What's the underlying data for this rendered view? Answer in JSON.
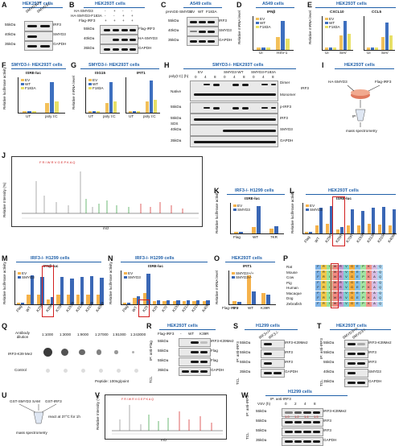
{
  "panels": {
    "A": {
      "label": "A",
      "title": "HEK293T cells",
      "lanes": [
        "SMYD3+/+",
        "SMYD3-/-"
      ],
      "blots": [
        "IRF3",
        "SMYD3",
        "GAPDH"
      ],
      "mw": [
        "55kDa",
        "40kDa",
        "35kDa"
      ]
    },
    "B": {
      "label": "B",
      "title": "HEK293T cells",
      "rows": [
        "HA-SMYD3",
        "HA-SMYD3-F183A",
        "Flag-IRF3"
      ],
      "signs": [
        "-",
        "+",
        "-",
        "-",
        "-",
        "-",
        "+",
        "+",
        "+",
        "+",
        "+",
        "+"
      ],
      "blots": [
        "Flag-IRF3",
        "HA-SMYD3",
        "GAPDH"
      ],
      "mw": [
        "55kDa",
        "40kDa",
        "35kDa"
      ]
    },
    "C": {
      "label": "C",
      "title": "A549 cells",
      "header": "pHAGE-SMYD3",
      "lanes": [
        "EV",
        "WT",
        "F183A"
      ],
      "blots": [
        "IRF3",
        "SMYD3",
        "GAPDH"
      ],
      "mw": [
        "55kDa",
        "40kDa",
        "35kDa"
      ]
    },
    "D": {
      "label": "D",
      "title": "A549 cells",
      "gene": "IFNβ",
      "ylabel": "Relative mRNA level",
      "legend": [
        "EV",
        "WT",
        "F183A"
      ],
      "groups": [
        "UI",
        "HSV-1"
      ]
    },
    "E": {
      "label": "E",
      "title": "HEK293T cells",
      "genes": [
        "CXCL10",
        "CCL5"
      ],
      "ylabel": "Relative mRNA level",
      "legend": [
        "EV",
        "WT",
        "F183A"
      ],
      "groups": [
        "UI",
        "SeV"
      ]
    },
    "F": {
      "label": "F",
      "title": "SMYD3-/- HEK293T cells",
      "sub": "ISRE-luc",
      "ylabel": "Relative luciferase activity",
      "legend": [
        "EV",
        "WT",
        "F183A"
      ],
      "groups": [
        "UT",
        "poly I:C"
      ]
    },
    "G": {
      "label": "G",
      "title": "SMYD3-/- HEK293T cells",
      "genes": [
        "ISG15",
        "IFIT1"
      ],
      "ylabel": "Relative mRNA level",
      "legend": [
        "EV",
        "WT",
        "F183A"
      ],
      "groups": [
        "UT",
        "poly I:C"
      ]
    },
    "H": {
      "label": "H",
      "title": "SMYD3-/- HEK293T cells",
      "header": "poly(I:C) (h)",
      "groups": [
        "EV",
        "SMYD3-WT",
        "SMYD3-F183A"
      ],
      "times": [
        "0",
        "4",
        "8",
        "0",
        "4",
        "8",
        "0",
        "4",
        "8"
      ],
      "native": "Native",
      "sds": "SDS",
      "dimer": "Dimer",
      "monomer": "Monomer",
      "irf3": "IRF3",
      "blots": [
        "p-IRF3",
        "IRF3",
        "SMYD3",
        "GAPDH"
      ],
      "mw": [
        "55kDa",
        "55kDa",
        "40kDa",
        "35kDa"
      ]
    },
    "I": {
      "label": "I",
      "title": "HEK293T cells",
      "items": [
        "HA-SMYD3",
        "Flag-IRF3",
        "IP",
        "mass spectrometry"
      ]
    },
    "J": {
      "label": "J",
      "ylabel": "Relative Intensity (%)",
      "xlabel": "m/z"
    },
    "K": {
      "label": "K",
      "title": "IRF3-/- H1299 cells",
      "sub": "ISRE-luc",
      "ylabel": "Relative luciferase activity",
      "legend": [
        "EV",
        "SMYD3"
      ],
      "groups": [
        "Flag",
        "WT",
        "7KR"
      ]
    },
    "L": {
      "label": "L",
      "title": "HEK293T cells",
      "sub": "ISRE-luc",
      "ylabel": "Relative luciferase activity",
      "legend": [
        "EV",
        "SMYD3"
      ],
      "groups": [
        "Flag",
        "WT",
        "K29R",
        "K39R",
        "K70R",
        "K193R",
        "K313R",
        "K315R",
        "K409R"
      ]
    },
    "M": {
      "label": "M",
      "title": "IRF3-/- H1299 cells",
      "sub": "IFNβ-luc",
      "ylabel": "Relative luciferase activity",
      "legend": [
        "EV",
        "SMYD3"
      ],
      "groups": [
        "Flag",
        "WT",
        "K29R",
        "K39R",
        "K70R",
        "K193R",
        "K313R",
        "K315R",
        "K409R"
      ]
    },
    "N": {
      "label": "N",
      "title": "IRF3-/- H1299 cells",
      "sub": "ISRE-luc",
      "ylabel": "Relative luciferase activity",
      "legend": [
        "EV",
        "SMYD3"
      ],
      "groups": [
        "Flag",
        "WT",
        "K29",
        "K39",
        "K70",
        "K193",
        "K313",
        "K315",
        "K409"
      ]
    },
    "O": {
      "label": "O",
      "title": "HEK293T cells",
      "gene": "IFIT1",
      "ylabel": "Relative mRNA level",
      "legend": [
        "SMYD3+/+",
        "SMYD3-/-"
      ],
      "groups": [
        "Flag-IRF3",
        "EV",
        "WT",
        "K39R"
      ]
    },
    "P": {
      "label": "P",
      "species": [
        "Rat",
        "Mouse",
        "Cow",
        "Pig",
        "Human",
        "Macaque",
        "Dog",
        "Zebrafish"
      ],
      "sequence": "FRIWRVGEPKAQ"
    },
    "Q": {
      "label": "Q",
      "row1": "Antibody dilution",
      "dilutions": [
        "1:1000",
        "1:3000",
        "1:9000",
        "1:27000",
        "1:81000",
        "1:243000"
      ],
      "rows": [
        "IRF3-K39 Me2",
        "Control"
      ],
      "peptide": "Peptide: 100ng/point"
    },
    "R": {
      "label": "R",
      "title": "HEK293T cells",
      "header": "Flag-IRF3",
      "lanes": [
        "-",
        "WT",
        "K39R"
      ],
      "ip": "IP: anti-Flag",
      "tcl": "TCL",
      "blots": [
        "IRF3-K39Me2",
        "Flag",
        "Flag",
        "GAPDH"
      ],
      "mw": [
        "55kDa",
        "55kDa",
        "55kDa",
        "35kDa"
      ]
    },
    "S": {
      "label": "S",
      "title": "H1299 cells",
      "lanes": [
        "IRF3+/+",
        "IRF3-/-"
      ],
      "ip": "IP: anti-IRF3",
      "tcl": "TCL",
      "blots": [
        "IRF3-K39Me2",
        "IRF3",
        "IRF3",
        "GAPDH"
      ],
      "mw": [
        "55kDa",
        "55kDa",
        "55kDa",
        "35kDa"
      ]
    },
    "T": {
      "label": "T",
      "title": "HEK293T cells",
      "lanes": [
        "SMYD3+/+",
        "SMYD3-/-"
      ],
      "ip": "IP: anti-IRF3",
      "tcl": "TCL",
      "blots": [
        "IRF3-K39Me2",
        "IRF3",
        "IRF3",
        "SMYD3",
        "GAPDH"
      ],
      "mw": [
        "55kDa",
        "55kDa",
        "55kDa",
        "40kDa",
        "35kDa"
      ]
    },
    "U": {
      "label": "U",
      "items": [
        "GST-SMYD3",
        "SAM",
        "GST-IRF3",
        "react at 37°C for 1h",
        "mass spectrometry"
      ]
    },
    "V": {
      "label": "V",
      "ylabel": "Relative Intensity (%)",
      "xlabel": "m/z"
    },
    "W": {
      "label": "W",
      "title": "H1299 cells",
      "header": "VSV (h)",
      "times": [
        "0",
        "2",
        "4",
        "8"
      ],
      "ratios": [
        "1.0",
        "1.2",
        "1.4",
        "1.5"
      ],
      "ip": "IP: anti-IRF3",
      "tcl": "TCL",
      "blots": [
        "IRF3-K39Me2",
        "IRF3",
        "IRF3",
        "GAPDH"
      ],
      "mw": [
        "55kDa",
        "55kDa",
        "55kDa",
        "35kDa"
      ]
    }
  },
  "colors": {
    "title": "#1f5fa8",
    "ev": "#f2c05a",
    "wt": "#3d6fbf",
    "f183a": "#e8e066",
    "smyd3": "#f2a65a",
    "bar_ev": "#f6b24b",
    "bar_smyd3": "#3a67b5",
    "red": "#d21f1f"
  }
}
